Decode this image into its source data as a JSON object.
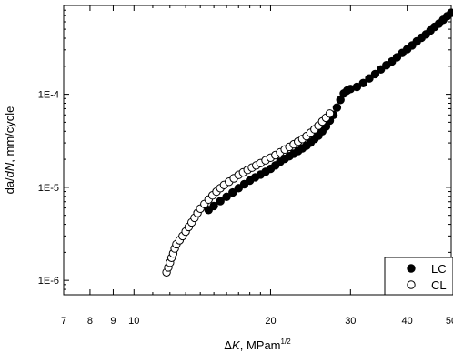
{
  "chart_data": {
    "type": "scatter",
    "title": "",
    "xlabel": {
      "prefix": "Δ",
      "symbol": "K",
      "units": ", MPam",
      "units_superscript": "1/2"
    },
    "ylabel": {
      "part1": "da/",
      "part2_italic": "dN",
      "part3": ", mm/cycle"
    },
    "x_scale": "log",
    "y_scale": "log",
    "xlim": [
      7,
      50
    ],
    "ylim": [
      7e-07,
      0.0009
    ],
    "x_ticks": [
      {
        "value": 7,
        "label": "7"
      },
      {
        "value": 8,
        "label": "8"
      },
      {
        "value": 9,
        "label": "9"
      },
      {
        "value": 10,
        "label": "10"
      },
      {
        "value": 20,
        "label": "20"
      },
      {
        "value": 30,
        "label": "30"
      },
      {
        "value": 40,
        "label": "40"
      },
      {
        "value": 50,
        "label": "50"
      }
    ],
    "y_ticks": [
      {
        "value": 1e-06,
        "label": "1E-6"
      },
      {
        "value": 1e-05,
        "label": "1E-5"
      },
      {
        "value": 0.0001,
        "label": "1E-4"
      }
    ],
    "grid": false,
    "legend_position": "bottom-right",
    "series": [
      {
        "name": "LC",
        "marker": "filled-circle",
        "color": "#000000",
        "points": [
          [
            14.6,
            5.7e-06
          ],
          [
            15.0,
            6.3e-06
          ],
          [
            15.5,
            7.1e-06
          ],
          [
            16.0,
            7.9e-06
          ],
          [
            16.5,
            8.8e-06
          ],
          [
            17.0,
            9.8e-06
          ],
          [
            17.5,
            1.08e-05
          ],
          [
            18.0,
            1.18e-05
          ],
          [
            18.5,
            1.28e-05
          ],
          [
            19.0,
            1.37e-05
          ],
          [
            19.5,
            1.47e-05
          ],
          [
            20.0,
            1.58e-05
          ],
          [
            20.5,
            1.72e-05
          ],
          [
            21.0,
            1.88e-05
          ],
          [
            21.5,
            2.02e-05
          ],
          [
            22.0,
            2.16e-05
          ],
          [
            22.5,
            2.3e-05
          ],
          [
            23.0,
            2.45e-05
          ],
          [
            23.5,
            2.62e-05
          ],
          [
            24.0,
            2.8e-05
          ],
          [
            24.5,
            3.02e-05
          ],
          [
            25.0,
            3.3e-05
          ],
          [
            25.5,
            3.6e-05
          ],
          [
            26.0,
            4e-05
          ],
          [
            26.5,
            4.5e-05
          ],
          [
            27.0,
            5.2e-05
          ],
          [
            27.5,
            6e-05
          ],
          [
            28.0,
            7.2e-05
          ],
          [
            28.5,
            8.7e-05
          ],
          [
            29.0,
            0.000102
          ],
          [
            29.5,
            0.00011
          ],
          [
            30.0,
            0.000114
          ],
          [
            31.0,
            0.00012
          ],
          [
            32.0,
            0.000132
          ],
          [
            33.0,
            0.000148
          ],
          [
            34.0,
            0.000165
          ],
          [
            35.0,
            0.000185
          ],
          [
            36.0,
            0.000205
          ],
          [
            37.0,
            0.000225
          ],
          [
            38.0,
            0.00025
          ],
          [
            39.0,
            0.000278
          ],
          [
            40.0,
            0.000305
          ],
          [
            41.0,
            0.000335
          ],
          [
            42.0,
            0.00037
          ],
          [
            43.0,
            0.000405
          ],
          [
            44.0,
            0.00044
          ],
          [
            45.0,
            0.000485
          ],
          [
            46.0,
            0.00053
          ],
          [
            47.0,
            0.000575
          ],
          [
            48.0,
            0.00063
          ],
          [
            49.0,
            0.00069
          ],
          [
            50.0,
            0.00075
          ]
        ]
      },
      {
        "name": "CL",
        "marker": "open-circle",
        "color": "#000000",
        "points": [
          [
            11.8,
            1.22e-06
          ],
          [
            11.9,
            1.38e-06
          ],
          [
            12.0,
            1.55e-06
          ],
          [
            12.1,
            1.75e-06
          ],
          [
            12.2,
            1.95e-06
          ],
          [
            12.3,
            2.2e-06
          ],
          [
            12.4,
            2.45e-06
          ],
          [
            12.6,
            2.7e-06
          ],
          [
            12.8,
            3e-06
          ],
          [
            13.0,
            3.35e-06
          ],
          [
            13.2,
            3.75e-06
          ],
          [
            13.4,
            4.2e-06
          ],
          [
            13.6,
            4.7e-06
          ],
          [
            13.8,
            5.3e-06
          ],
          [
            14.0,
            5.9e-06
          ],
          [
            14.3,
            6.6e-06
          ],
          [
            14.6,
            7.4e-06
          ],
          [
            14.9,
            8.2e-06
          ],
          [
            15.2,
            9e-06
          ],
          [
            15.5,
            9.8e-06
          ],
          [
            15.8,
            1.06e-05
          ],
          [
            16.2,
            1.15e-05
          ],
          [
            16.6,
            1.25e-05
          ],
          [
            17.0,
            1.36e-05
          ],
          [
            17.4,
            1.45e-05
          ],
          [
            17.8,
            1.54e-05
          ],
          [
            18.2,
            1.63e-05
          ],
          [
            18.6,
            1.72e-05
          ],
          [
            19.0,
            1.82e-05
          ],
          [
            19.5,
            1.95e-05
          ],
          [
            20.0,
            2.08e-05
          ],
          [
            20.5,
            2.22e-05
          ],
          [
            21.0,
            2.38e-05
          ],
          [
            21.5,
            2.55e-05
          ],
          [
            22.0,
            2.72e-05
          ],
          [
            22.5,
            2.9e-05
          ],
          [
            23.0,
            3.1e-05
          ],
          [
            23.5,
            3.3e-05
          ],
          [
            24.0,
            3.55e-05
          ],
          [
            24.5,
            3.85e-05
          ],
          [
            25.0,
            4.2e-05
          ],
          [
            25.5,
            4.6e-05
          ],
          [
            26.0,
            5.1e-05
          ],
          [
            26.5,
            5.6e-05
          ],
          [
            27.0,
            6.2e-05
          ]
        ]
      }
    ]
  }
}
